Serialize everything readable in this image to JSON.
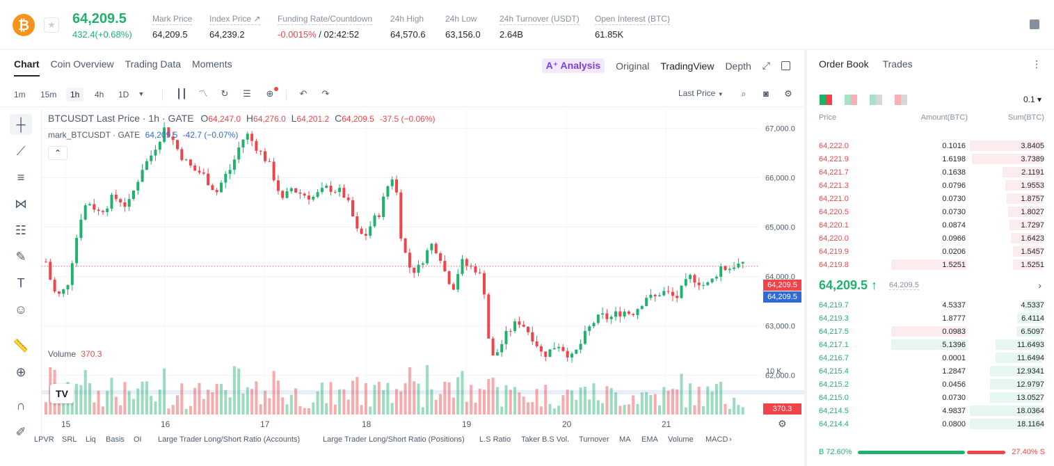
{
  "header": {
    "coin_symbol": "₿",
    "star": "★",
    "last_price": "64,209.5",
    "change": "432.4(+0.68%)",
    "stats": [
      {
        "label": "Mark Price",
        "value": "64,209.5"
      },
      {
        "label": "Index Price ↗",
        "value": "64,239.2"
      },
      {
        "label": "Funding Rate/Countdown",
        "value_neg": "-0.0015%",
        "value_rest": " / 02:42:52"
      },
      {
        "label": "24h High",
        "value": "64,570.6"
      },
      {
        "label": "24h Low",
        "value": "63,156.0"
      },
      {
        "label": "24h Turnover (USDT)",
        "value": "2.64B"
      },
      {
        "label": "Open Interest (BTC)",
        "value": "61.85K"
      }
    ]
  },
  "chart_tabs": [
    "Chart",
    "Coin Overview",
    "Trading Data",
    "Moments"
  ],
  "view_tabs": {
    "ai": "A⁺ Analysis",
    "original": "Original",
    "tradingview": "TradingView",
    "depth": "Depth"
  },
  "timeframes": [
    "1m",
    "15m",
    "1h",
    "4h",
    "1D"
  ],
  "price_source": "Last Price",
  "legend": {
    "symbol": "BTCUSDT Last Price · 1h · GATE",
    "o_label": "O",
    "o": "64,247.0",
    "h_label": "H",
    "h": "64,276.0",
    "l_label": "L",
    "l": "64,201.2",
    "c_label": "C",
    "c": "64,209.5",
    "chg": "-37.5 (−0.06%)",
    "mark_label": "mark_BTCUSDT · GATE",
    "mark_value": "64,209.5",
    "mark_chg": "-42.7 (−0.07%)",
    "collapse": "⌃"
  },
  "volume": {
    "label": "Volume",
    "value": "370.3",
    "axis_label": "10 K"
  },
  "price_labels": {
    "last": "64,209.5",
    "mark": "64,209.5"
  },
  "indicators": [
    "LPVR",
    "SRL",
    "Liq",
    "Basis",
    "OI",
    "Large Trader Long/Short Ratio (Accounts)",
    "Large Trader Long/Short Ratio (Positions)",
    "L.S Ratio",
    "Taker B.S Vol.",
    "Turnover",
    "MA",
    "EMA",
    "Volume",
    "MACD"
  ],
  "colors": {
    "up": "#20b26c",
    "down": "#ef454a",
    "mark": "#2f6bd8"
  },
  "chart_data": {
    "type": "candlestick",
    "y_ticks": [
      "67,000.0",
      "66,000.0",
      "65,000.0",
      "64,000.0",
      "63,000.0",
      "62,000.0"
    ],
    "x_ticks": [
      "15",
      "16",
      "17",
      "18",
      "19",
      "20",
      "21"
    ],
    "ylim": [
      61700,
      67400
    ],
    "close_path": [
      64300,
      63700,
      63600,
      63900,
      64700,
      65400,
      65500,
      65300,
      65400,
      65600,
      65550,
      65400,
      65800,
      66200,
      66400,
      66700,
      67000,
      66800,
      66500,
      66300,
      66150,
      66100,
      65900,
      65700,
      66000,
      66200,
      66600,
      66900,
      66700,
      66500,
      66300,
      65900,
      65500,
      65800,
      65700,
      65650,
      65600,
      65700,
      65800,
      65750,
      65700,
      65400,
      64900,
      64800,
      65100,
      65300,
      65800,
      66100,
      64700,
      64200,
      64100,
      64400,
      64650,
      64500,
      64000,
      63800,
      64300,
      64200,
      64150,
      63900,
      62300,
      62500,
      62800,
      63000,
      63100,
      62900,
      62700,
      62400,
      62500,
      62650,
      62500,
      62350,
      62600,
      62900,
      63100,
      63200,
      63150,
      63250,
      63300,
      63250,
      63400,
      63600,
      63550,
      63700,
      63650,
      63550,
      63800,
      64000,
      63900,
      63800,
      63950,
      64200,
      64150,
      64250,
      64210
    ]
  },
  "orderbook": {
    "tabs": [
      "Order Book",
      "Trades"
    ],
    "precision": "0.1 ▾",
    "headers": {
      "price": "Price",
      "amount": "Amount(BTC)",
      "sum": "Sum(BTC)"
    },
    "asks": [
      {
        "price": "64,222.0",
        "amount": "0.1016",
        "sum": "3.8405",
        "depth": 1.0
      },
      {
        "price": "64,221.9",
        "amount": "1.6198",
        "sum": "3.7389",
        "depth": 0.97
      },
      {
        "price": "64,221.7",
        "amount": "0.1638",
        "sum": "2.1191",
        "depth": 0.55
      },
      {
        "price": "64,221.3",
        "amount": "0.0796",
        "sum": "1.9553",
        "depth": 0.51
      },
      {
        "price": "64,221.0",
        "amount": "0.0730",
        "sum": "1.8757",
        "depth": 0.49
      },
      {
        "price": "64,220.5",
        "amount": "0.0730",
        "sum": "1.8027",
        "depth": 0.47
      },
      {
        "price": "64,220.1",
        "amount": "0.0874",
        "sum": "1.7297",
        "depth": 0.45
      },
      {
        "price": "64,220.0",
        "amount": "0.0966",
        "sum": "1.6423",
        "depth": 0.43
      },
      {
        "price": "64,219.9",
        "amount": "0.0206",
        "sum": "1.5457",
        "depth": 0.4
      },
      {
        "price": "64,219.8",
        "amount": "1.5251",
        "sum": "1.5251",
        "depth": 0.4,
        "highlight": true
      }
    ],
    "mid_price": "64,209.5 ↑",
    "mid_mark": "64,209.5",
    "bids": [
      {
        "price": "64,219.7",
        "amount": "4.5337",
        "sum": "4.5337",
        "depth": 0.25
      },
      {
        "price": "64,219.3",
        "amount": "1.8777",
        "sum": "6.4114",
        "depth": 0.35
      },
      {
        "price": "64,217.5",
        "amount": "0.0983",
        "sum": "6.5097",
        "depth": 0.36,
        "highlight": "ask"
      },
      {
        "price": "64,217.1",
        "amount": "5.1396",
        "sum": "11.6493",
        "depth": 0.64,
        "highlight": "bid"
      },
      {
        "price": "64,216.7",
        "amount": "0.0001",
        "sum": "11.6494",
        "depth": 0.64
      },
      {
        "price": "64,215.4",
        "amount": "1.2847",
        "sum": "12.9341",
        "depth": 0.72
      },
      {
        "price": "64,215.2",
        "amount": "0.0456",
        "sum": "12.9797",
        "depth": 0.72
      },
      {
        "price": "64,215.0",
        "amount": "0.0730",
        "sum": "13.0527",
        "depth": 0.72
      },
      {
        "price": "64,214.5",
        "amount": "4.9837",
        "sum": "18.0364",
        "depth": 1.0
      },
      {
        "price": "64,214.4",
        "amount": "0.0800",
        "sum": "18.1164",
        "depth": 1.0
      }
    ],
    "buy_ratio": "B 72.60%",
    "sell_ratio": "27.40% S",
    "buy_fraction": 0.726
  }
}
